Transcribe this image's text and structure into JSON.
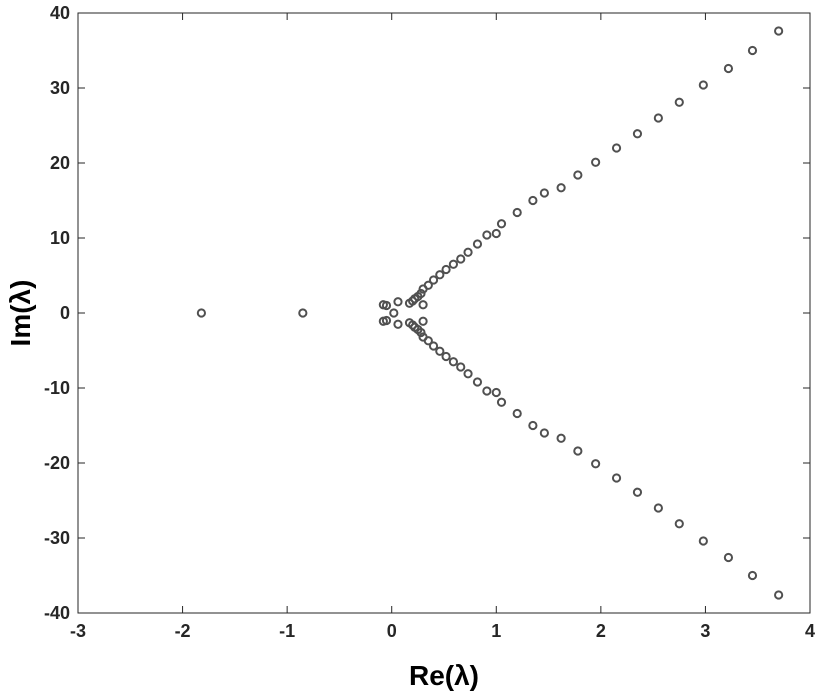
{
  "chart_data": {
    "type": "scatter",
    "title": "",
    "xlabel": "Re(λ)",
    "ylabel": "Im(λ)",
    "xlim": [
      -3,
      4
    ],
    "ylim": [
      -40,
      40
    ],
    "x_ticks": [
      -3,
      -2,
      -1,
      0,
      1,
      2,
      3,
      4
    ],
    "y_ticks": [
      -40,
      -30,
      -20,
      -10,
      0,
      10,
      20,
      30,
      40
    ],
    "x_tick_labels": [
      "-3",
      "-2",
      "-1",
      "0",
      "1",
      "2",
      "3",
      "4"
    ],
    "y_tick_labels": [
      "-40",
      "-30",
      "-20",
      "-10",
      "0",
      "10",
      "20",
      "30",
      "40"
    ],
    "grid": false,
    "marker": "circle-open",
    "marker_color": "#505050",
    "series": [
      {
        "points": [
          [
            -1.82,
            0
          ],
          [
            -0.85,
            0
          ],
          [
            -0.08,
            1.1
          ],
          [
            -0.05,
            1.0
          ],
          [
            -0.08,
            -1.1
          ],
          [
            -0.05,
            -1.0
          ],
          [
            0.06,
            1.5
          ],
          [
            0.06,
            -1.5
          ],
          [
            0.02,
            0
          ],
          [
            0.17,
            1.3
          ],
          [
            0.2,
            1.6
          ],
          [
            0.22,
            1.9
          ],
          [
            0.25,
            2.2
          ],
          [
            0.28,
            2.6
          ],
          [
            0.3,
            1.1
          ],
          [
            0.17,
            -1.3
          ],
          [
            0.2,
            -1.6
          ],
          [
            0.22,
            -1.9
          ],
          [
            0.25,
            -2.2
          ],
          [
            0.28,
            -2.6
          ],
          [
            0.3,
            -1.1
          ],
          [
            0.3,
            3.2
          ],
          [
            0.35,
            3.7
          ],
          [
            0.4,
            4.4
          ],
          [
            0.46,
            5.1
          ],
          [
            0.52,
            5.8
          ],
          [
            0.59,
            6.5
          ],
          [
            0.66,
            7.2
          ],
          [
            0.73,
            8.1
          ],
          [
            0.82,
            9.2
          ],
          [
            0.91,
            10.4
          ],
          [
            1.0,
            10.6
          ],
          [
            1.05,
            11.9
          ],
          [
            1.2,
            13.4
          ],
          [
            1.35,
            15.0
          ],
          [
            1.46,
            16.0
          ],
          [
            1.62,
            16.7
          ],
          [
            1.78,
            18.4
          ],
          [
            1.95,
            20.1
          ],
          [
            2.15,
            22.0
          ],
          [
            2.35,
            23.9
          ],
          [
            2.55,
            26.0
          ],
          [
            2.75,
            28.1
          ],
          [
            2.98,
            30.4
          ],
          [
            3.22,
            32.6
          ],
          [
            3.45,
            35.0
          ],
          [
            3.7,
            37.6
          ],
          [
            0.3,
            -3.2
          ],
          [
            0.35,
            -3.7
          ],
          [
            0.4,
            -4.4
          ],
          [
            0.46,
            -5.1
          ],
          [
            0.52,
            -5.8
          ],
          [
            0.59,
            -6.5
          ],
          [
            0.66,
            -7.2
          ],
          [
            0.73,
            -8.1
          ],
          [
            0.82,
            -9.2
          ],
          [
            0.91,
            -10.4
          ],
          [
            1.0,
            -10.6
          ],
          [
            1.05,
            -11.9
          ],
          [
            1.2,
            -13.4
          ],
          [
            1.35,
            -15.0
          ],
          [
            1.46,
            -16.0
          ],
          [
            1.62,
            -16.7
          ],
          [
            1.78,
            -18.4
          ],
          [
            1.95,
            -20.1
          ],
          [
            2.15,
            -22.0
          ],
          [
            2.35,
            -23.9
          ],
          [
            2.55,
            -26.0
          ],
          [
            2.75,
            -28.1
          ],
          [
            2.98,
            -30.4
          ],
          [
            3.22,
            -32.6
          ],
          [
            3.45,
            -35.0
          ],
          [
            3.7,
            -37.6
          ]
        ]
      }
    ]
  }
}
